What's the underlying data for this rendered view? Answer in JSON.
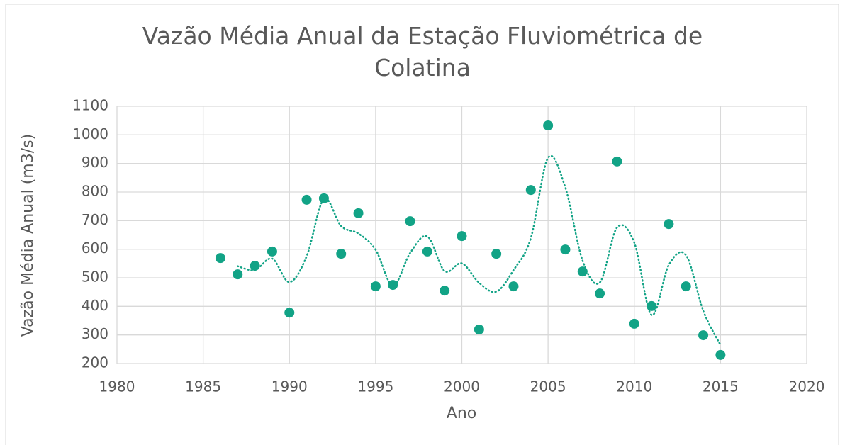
{
  "chart_data": {
    "type": "scatter",
    "title": "Vazão Média Anual da Estação Fluviométrica de Colatina",
    "x_label": "Ano",
    "y_label": "Vazão Média Anual (m3/s)",
    "series": [
      {
        "name": "Vazão Média Anual",
        "color": "#12a386",
        "x": [
          1986,
          1987,
          1988,
          1989,
          1990,
          1991,
          1992,
          1993,
          1994,
          1995,
          1996,
          1997,
          1998,
          1999,
          2000,
          2001,
          2002,
          2003,
          2004,
          2005,
          2006,
          2007,
          2008,
          2009,
          2010,
          2011,
          2012,
          2013,
          2014,
          2015
        ],
        "values": [
          569,
          512,
          542,
          592,
          378,
          773,
          778,
          584,
          726,
          470,
          475,
          698,
          592,
          455,
          646,
          319,
          584,
          470,
          807,
          1033,
          599,
          522,
          445,
          907,
          339,
          401,
          688,
          470,
          299,
          230
        ]
      }
    ],
    "xlim": [
      1980,
      2020
    ],
    "xticks": [
      1980,
      1985,
      1990,
      1995,
      2000,
      2005,
      2010,
      2015,
      2020
    ],
    "ylim": [
      200,
      1100
    ],
    "yticks": [
      200,
      300,
      400,
      500,
      600,
      700,
      800,
      900,
      1000,
      1100
    ],
    "grid": true
  }
}
